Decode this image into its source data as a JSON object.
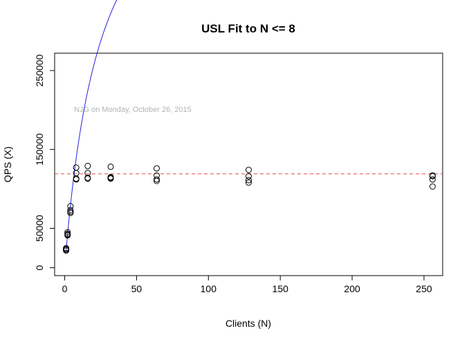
{
  "chart_data": {
    "type": "scatter",
    "title": "USL Fit to N <= 8",
    "xlabel": "Clients (N)",
    "ylabel": "QPS (X)",
    "xlim": [
      -7,
      263
    ],
    "ylim": [
      -10000,
      272000
    ],
    "xticks": [
      0,
      50,
      100,
      150,
      200,
      250
    ],
    "xtick_labels": [
      "0",
      "50",
      "100",
      "150",
      "200",
      "250"
    ],
    "yticks": [
      0,
      50000,
      150000,
      250000
    ],
    "ytick_labels": [
      "0",
      "50000",
      "150000",
      "250000"
    ],
    "grid": false,
    "annotation": "NJG on Monday, October 26, 2015",
    "colors": {
      "fit_curve": "#2222dd",
      "reference_line": "#e34a4a",
      "points": "#000000"
    },
    "series": [
      {
        "kind": "points",
        "x": [
          1,
          1,
          1,
          1,
          2,
          2,
          2,
          2,
          4,
          4,
          4,
          4,
          8,
          8,
          8,
          8,
          16,
          16,
          16,
          16,
          32,
          32,
          32,
          32,
          64,
          64,
          64,
          64,
          128,
          128,
          128,
          128,
          256,
          256,
          256,
          256
        ],
        "y": [
          21800,
          23000,
          24200,
          24800,
          41000,
          42000,
          43000,
          45000,
          69500,
          71000,
          73000,
          78000,
          112000,
          113000,
          120000,
          127000,
          113000,
          114000,
          120000,
          129000,
          113000,
          114000,
          115000,
          128000,
          110000,
          112000,
          117000,
          126000,
          108000,
          111000,
          116000,
          124000,
          103000,
          112000,
          116000,
          117000
        ]
      },
      {
        "kind": "usl_curve",
        "model": {
          "lambda": 22000,
          "sigma": 0.0382,
          "kappa": 0,
          "n_min": 1,
          "n_max": 256
        }
      },
      {
        "kind": "reference_line",
        "orientation": "horizontal",
        "y": 119000,
        "style": "dashed"
      }
    ]
  }
}
